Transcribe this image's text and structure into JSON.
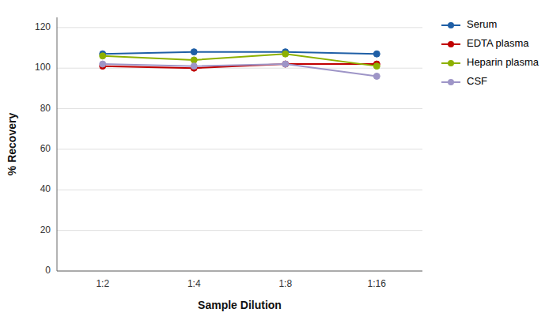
{
  "chart_data": {
    "type": "line",
    "x_label": "Sample Dilution",
    "y_label": "% Recovery",
    "categories": [
      "1:2",
      "1:4",
      "1:8",
      "1:16"
    ],
    "series": [
      {
        "name": "Serum",
        "color": "#1f5fa6",
        "marker": "circle",
        "values": [
          107,
          108,
          108,
          107
        ]
      },
      {
        "name": "EDTA plasma",
        "color": "#c00000",
        "marker": "circle",
        "values": [
          101,
          100,
          102,
          102
        ]
      },
      {
        "name": "Heparin plasma",
        "color": "#8db000",
        "marker": "circle",
        "values": [
          106,
          104,
          107,
          101
        ]
      },
      {
        "name": "CSF",
        "color": "#9e95c7",
        "marker": "circle",
        "values": [
          102,
          101,
          102,
          96
        ]
      }
    ],
    "ylim": [
      0,
      125
    ],
    "yticks": [
      0,
      20,
      40,
      60,
      80,
      100,
      120
    ],
    "grid": true,
    "legend": "right"
  }
}
